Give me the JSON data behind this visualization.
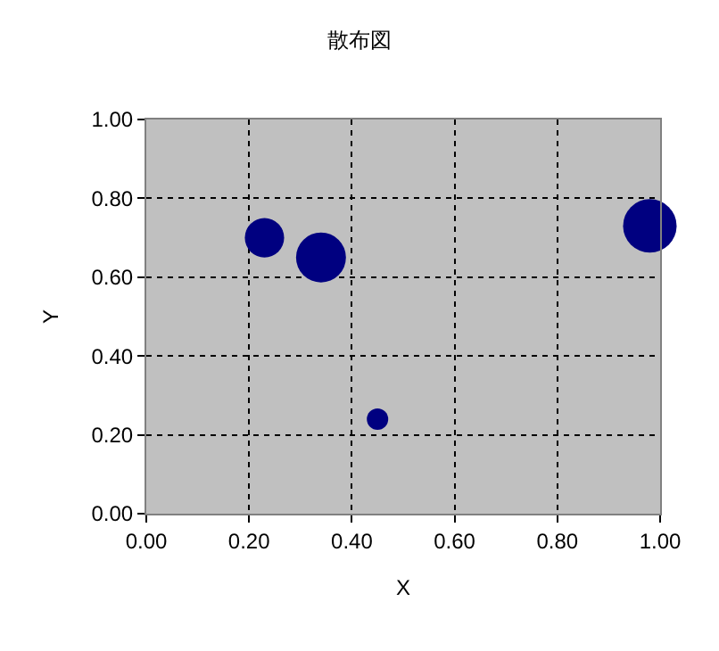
{
  "chart_data": {
    "type": "bubble",
    "title": "散布図",
    "xlabel": "X",
    "ylabel": "Y",
    "x": [
      0.23,
      0.34,
      0.45,
      0.98
    ],
    "values": [
      0.7,
      0.65,
      0.24,
      0.73
    ],
    "sizes": [
      0.54,
      0.87,
      0.16,
      1
    ],
    "color": "#000080",
    "xlim": [
      0,
      1
    ],
    "xticks": [
      {
        "value": 0,
        "label": "0.00"
      },
      {
        "value": 0.2,
        "label": "0.20"
      },
      {
        "value": 0.4,
        "label": "0.40"
      },
      {
        "value": 0.6,
        "label": "0.60"
      },
      {
        "value": 0.8,
        "label": "0.80"
      },
      {
        "value": 1,
        "label": "1.00"
      }
    ],
    "ylim": [
      0,
      1
    ],
    "yticks": [
      {
        "value": 0,
        "label": "0.00"
      },
      {
        "value": 0.2,
        "label": "0.20"
      },
      {
        "value": 0.4,
        "label": "0.40"
      },
      {
        "value": 0.6,
        "label": "0.60"
      },
      {
        "value": 0.8,
        "label": "0.80"
      },
      {
        "value": 1,
        "label": "1.00"
      }
    ],
    "grid": true
  }
}
